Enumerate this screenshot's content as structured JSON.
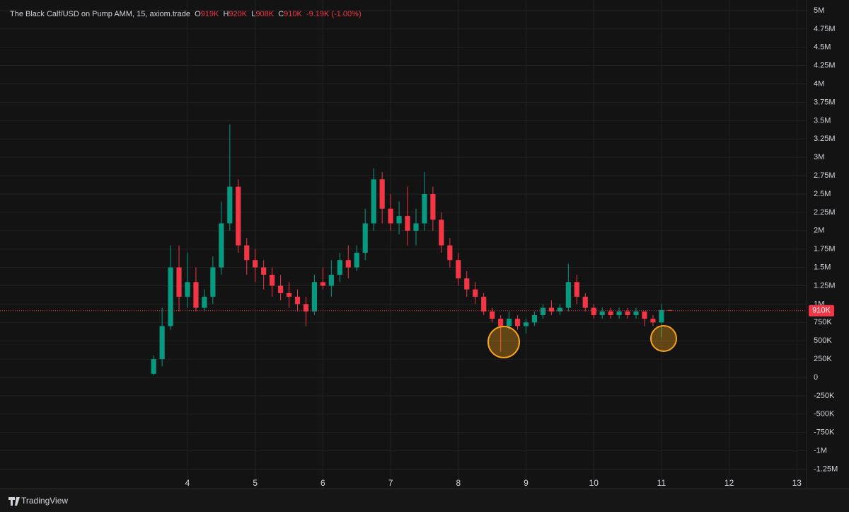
{
  "chart_data": {
    "type": "candlestick",
    "title": "The Black Calf/USD on Pump AMM, 15, axiom.trade",
    "ohlc_labels": {
      "open_key": "O",
      "open": "919K",
      "high_key": "H",
      "high": "920K",
      "low_key": "L",
      "low": "908K",
      "close_key": "C",
      "close": "910K",
      "change": "-9.19K (-1.00%)"
    },
    "x": [
      3.5,
      3.625,
      3.75,
      3.875,
      4.0,
      4.125,
      4.25,
      4.375,
      4.5,
      4.625,
      4.75,
      4.875,
      5.0,
      5.125,
      5.25,
      5.375,
      5.5,
      5.625,
      5.75,
      5.875,
      6.0,
      6.125,
      6.25,
      6.375,
      6.5,
      6.625,
      6.75,
      6.875,
      7.0,
      7.125,
      7.25,
      7.375,
      7.5,
      7.625,
      7.75,
      7.875,
      8.0,
      8.125,
      8.25,
      8.375,
      8.5,
      8.625,
      8.75,
      8.875,
      9.0,
      9.125,
      9.25,
      9.375,
      9.5,
      9.625,
      9.75,
      9.875,
      10.0,
      10.125,
      10.25,
      10.375,
      10.5,
      10.625,
      10.75,
      10.875,
      11.0,
      11.125
    ],
    "open": [
      50000,
      250000,
      700000,
      1500000,
      1100000,
      1300000,
      950000,
      1100000,
      1500000,
      2100000,
      2600000,
      1800000,
      1600000,
      1500000,
      1400000,
      1250000,
      1150000,
      1100000,
      1000000,
      900000,
      1300000,
      1250000,
      1400000,
      1600000,
      1500000,
      1700000,
      2100000,
      2700000,
      2300000,
      2100000,
      2200000,
      2000000,
      2100000,
      2500000,
      2150000,
      1800000,
      1600000,
      1350000,
      1200000,
      1100000,
      900000,
      800000,
      700000,
      800000,
      700000,
      750000,
      850000,
      950000,
      900000,
      950000,
      1300000,
      1100000,
      950000,
      850000,
      900000,
      850000,
      900000,
      850000,
      900000,
      800000,
      750000,
      919000
    ],
    "high": [
      300000,
      950000,
      1800000,
      1800000,
      1700000,
      1500000,
      1200000,
      1650000,
      2400000,
      3450000,
      2700000,
      1900000,
      1750000,
      1600000,
      1500000,
      1400000,
      1300000,
      1200000,
      1100000,
      1400000,
      1500000,
      1600000,
      1700000,
      1800000,
      1800000,
      2300000,
      2850000,
      2800000,
      2500000,
      2400000,
      2600000,
      2300000,
      2800000,
      2600000,
      2250000,
      1900000,
      1700000,
      1450000,
      1300000,
      1150000,
      950000,
      850000,
      900000,
      850000,
      800000,
      900000,
      1000000,
      1050000,
      1000000,
      1550000,
      1400000,
      1150000,
      1000000,
      950000,
      950000,
      950000,
      950000,
      950000,
      900000,
      850000,
      1000000,
      920000
    ],
    "low": [
      30000,
      150000,
      650000,
      900000,
      950000,
      900000,
      900000,
      1000000,
      1400000,
      2000000,
      1700000,
      1400000,
      1300000,
      1200000,
      1100000,
      1050000,
      950000,
      900000,
      700000,
      850000,
      1200000,
      1100000,
      1300000,
      1350000,
      1450000,
      1600000,
      2000000,
      2100000,
      2000000,
      1950000,
      1800000,
      1800000,
      2000000,
      2000000,
      1700000,
      1500000,
      1250000,
      1100000,
      1000000,
      850000,
      750000,
      350000,
      650000,
      650000,
      600000,
      700000,
      800000,
      850000,
      850000,
      900000,
      1000000,
      900000,
      800000,
      800000,
      800000,
      800000,
      800000,
      800000,
      700000,
      700000,
      550000,
      908000
    ],
    "close": [
      250000,
      700000,
      1500000,
      1100000,
      1300000,
      950000,
      1100000,
      1500000,
      2100000,
      2600000,
      1800000,
      1600000,
      1500000,
      1400000,
      1250000,
      1150000,
      1100000,
      1000000,
      900000,
      1300000,
      1250000,
      1400000,
      1600000,
      1500000,
      1700000,
      2100000,
      2700000,
      2300000,
      2100000,
      2200000,
      2000000,
      2100000,
      2500000,
      2150000,
      1800000,
      1600000,
      1350000,
      1200000,
      1100000,
      900000,
      800000,
      700000,
      800000,
      700000,
      750000,
      850000,
      950000,
      900000,
      950000,
      1300000,
      1100000,
      950000,
      850000,
      900000,
      850000,
      900000,
      850000,
      900000,
      800000,
      750000,
      919000,
      910000
    ],
    "up_color": "#089981",
    "down_color": "#f23645",
    "xlim": [
      1.231,
      13.143
    ],
    "xticks": [
      4,
      5,
      6,
      7,
      8,
      9,
      10,
      11,
      12,
      13
    ],
    "ylim": [
      -1515000,
      5067000
    ],
    "yticks": [
      {
        "value": 5000000,
        "label": "5M"
      },
      {
        "value": 4750000,
        "label": "4.75M"
      },
      {
        "value": 4500000,
        "label": "4.5M"
      },
      {
        "value": 4250000,
        "label": "4.25M"
      },
      {
        "value": 4000000,
        "label": "4M"
      },
      {
        "value": 3750000,
        "label": "3.75M"
      },
      {
        "value": 3500000,
        "label": "3.5M"
      },
      {
        "value": 3250000,
        "label": "3.25M"
      },
      {
        "value": 3000000,
        "label": "3M"
      },
      {
        "value": 2750000,
        "label": "2.75M"
      },
      {
        "value": 2500000,
        "label": "2.5M"
      },
      {
        "value": 2250000,
        "label": "2.25M"
      },
      {
        "value": 2000000,
        "label": "2M"
      },
      {
        "value": 1750000,
        "label": "1.75M"
      },
      {
        "value": 1500000,
        "label": "1.5M"
      },
      {
        "value": 1250000,
        "label": "1.25M"
      },
      {
        "value": 1000000,
        "label": "1M"
      },
      {
        "value": 750000,
        "label": "750K"
      },
      {
        "value": 500000,
        "label": "500K"
      },
      {
        "value": 250000,
        "label": "250K"
      },
      0,
      {
        "value": -250000,
        "label": "-250K"
      },
      {
        "value": -500000,
        "label": "-500K"
      },
      {
        "value": -750000,
        "label": "-750K"
      },
      {
        "value": -1000000,
        "label": "-1M"
      },
      {
        "value": -1250000,
        "label": "-1.25M"
      }
    ],
    "last_price": {
      "value": 910000,
      "label": "910K"
    },
    "grid": true,
    "brand": "TradingView"
  }
}
